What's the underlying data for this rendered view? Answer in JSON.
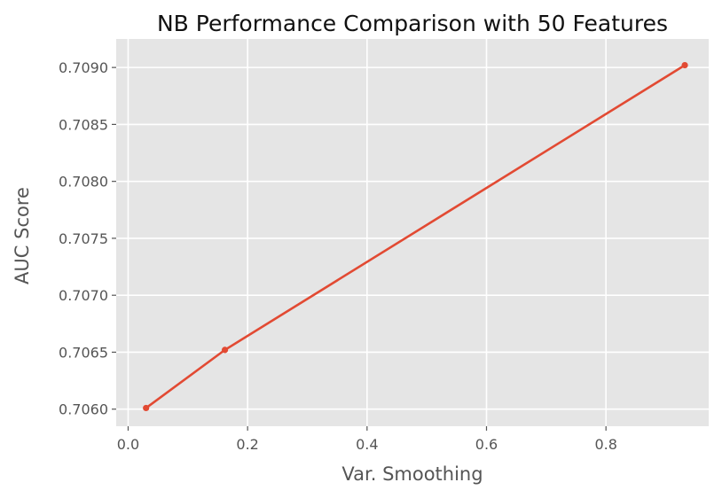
{
  "chart_data": {
    "type": "line",
    "title": "NB Performance Comparison with 50 Features",
    "xlabel": "Var. Smoothing",
    "ylabel": "AUC Score",
    "xlim": [
      -0.02,
      0.972
    ],
    "ylim": [
      0.70585,
      0.70925
    ],
    "xticks": [
      0.0,
      0.2,
      0.4,
      0.6,
      0.8
    ],
    "xtick_labels": [
      "0.0",
      "0.2",
      "0.4",
      "0.6",
      "0.8"
    ],
    "yticks": [
      0.706,
      0.7065,
      0.707,
      0.7075,
      0.708,
      0.7085,
      0.709
    ],
    "ytick_labels": [
      "0.7060",
      "0.7065",
      "0.7070",
      "0.7075",
      "0.7080",
      "0.7085",
      "0.7090"
    ],
    "grid": true,
    "series": [
      {
        "x": [
          0.03,
          0.162,
          0.932
        ],
        "y": [
          0.70601,
          0.70652,
          0.70902
        ],
        "color": "#e24a33",
        "marker": "circle"
      }
    ],
    "background_color": "#e5e5e5",
    "grid_color": "#ffffff"
  }
}
